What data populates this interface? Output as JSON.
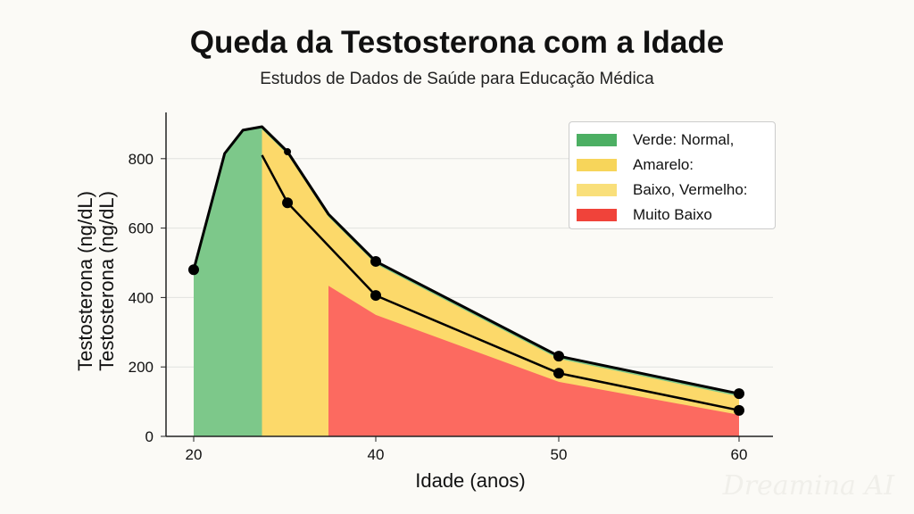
{
  "chart_data": {
    "type": "area",
    "title": "Queda da Testosterona com a Idade",
    "subtitle": "Estudos de Dados de Saúde para Educação Médica",
    "xlabel": "Idade (anos)",
    "ylabel": "Testosterona (ng/dL)",
    "ylabel_repeat": "Testosterona (ng/dL)",
    "x_ticks": [
      20,
      40,
      50,
      60
    ],
    "y_ticks": [
      0,
      200,
      400,
      600,
      800
    ],
    "ylim": [
      0,
      950
    ],
    "grid": "horizontal",
    "legend_position": "top-right",
    "legend": [
      {
        "label": "Verde: Normal,",
        "color": "#4caf63"
      },
      {
        "label": "Amarelo:",
        "color": "#f7d55a"
      },
      {
        "label": "Baixo, Vermelho:",
        "color": "#f9df7a"
      },
      {
        "label": "Muito Baixo",
        "color": "#f0433a"
      }
    ],
    "upper_line": {
      "x": [
        20,
        23.4,
        25.4,
        27.5,
        30.3,
        34.8,
        40,
        50,
        60
      ],
      "y": [
        480,
        815,
        882,
        892,
        820,
        640,
        504,
        231,
        123
      ],
      "markers_at": [
        20,
        30.3,
        40,
        50,
        60
      ]
    },
    "lower_line": {
      "x": [
        27.5,
        30.3,
        40,
        50,
        60
      ],
      "y": [
        810,
        673,
        406,
        182,
        75
      ],
      "markers_at": [
        30.3,
        40,
        50,
        60
      ]
    },
    "red_top": {
      "x": [
        34.8,
        40,
        50,
        60
      ],
      "y": [
        434,
        350,
        157,
        62
      ]
    },
    "zones": {
      "green_end": 27.5,
      "yellow_end": 34.8
    },
    "fill_colors": {
      "green": "#7dc88a",
      "yellow": "#fcd96a",
      "red": "#fc6a60"
    }
  },
  "watermark": "Dreamina AI"
}
